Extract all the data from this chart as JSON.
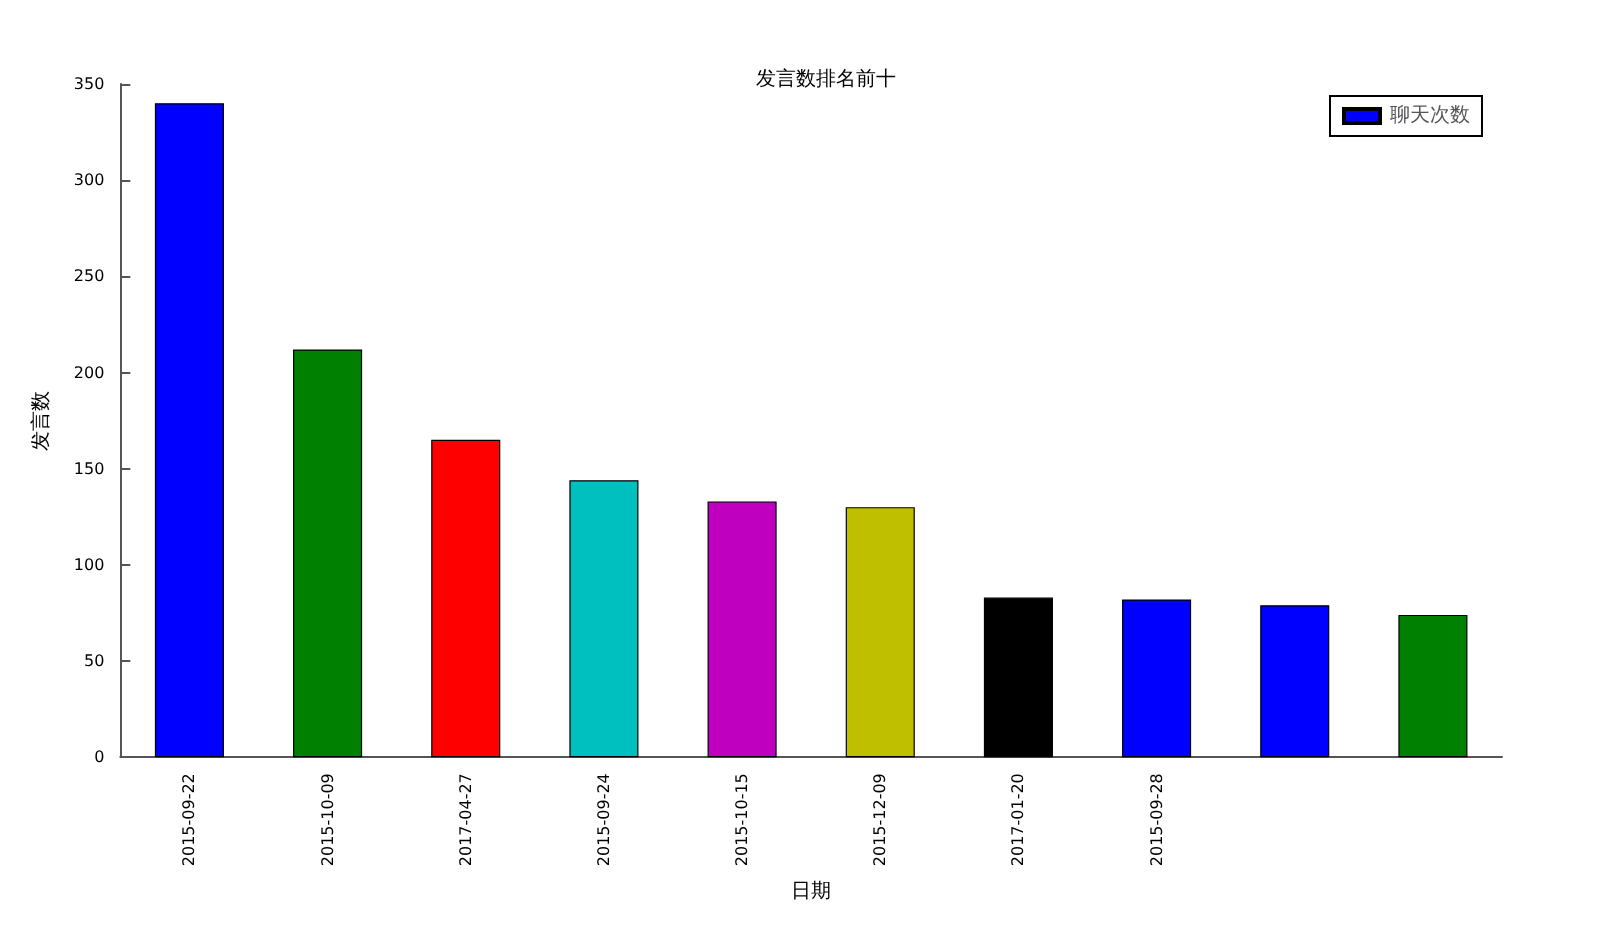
{
  "chart_data": {
    "type": "bar",
    "title": "发言数排名前十",
    "xlabel": "日期",
    "ylabel": "发言数",
    "categories": [
      "2015-09-22",
      "2015-10-09",
      "2017-04-27",
      "2015-09-24",
      "2015-10-15",
      "2015-12-09",
      "2017-01-20",
      "2015-09-28",
      null,
      null
    ],
    "series": [
      {
        "name": "聊天次数",
        "values": [
          340,
          212,
          165,
          144,
          133,
          130,
          83,
          82,
          79,
          74
        ]
      }
    ],
    "colors": [
      "#0000ff",
      "#008000",
      "#ff0000",
      "#00bfbf",
      "#bf00bf",
      "#bfbf00",
      "#000000",
      "#0000ff",
      "#0000ff",
      "#008000"
    ],
    "ylim": [
      0,
      350
    ],
    "yticks": [
      0,
      50,
      100,
      150,
      200,
      250,
      300,
      350
    ],
    "grid": false,
    "legend": "top right"
  }
}
